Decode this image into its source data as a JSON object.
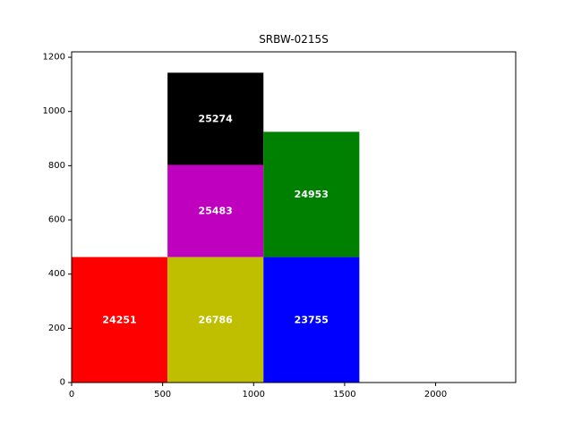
{
  "chart_data": {
    "type": "rectangles",
    "title": "SRBW-0215S",
    "xlabel": "",
    "ylabel": "",
    "xlim": [
      0,
      2440
    ],
    "ylim": [
      0,
      1220
    ],
    "xticks": [
      0,
      500,
      1000,
      1500,
      2000
    ],
    "yticks": [
      0,
      200,
      400,
      600,
      800,
      1000,
      1200
    ],
    "grid": false,
    "rectangles": [
      {
        "label": "24251",
        "x": 0,
        "y": 0,
        "width": 527,
        "height": 463,
        "color": "#ff0000"
      },
      {
        "label": "26786",
        "x": 527,
        "y": 0,
        "width": 527,
        "height": 463,
        "color": "#bfbf00"
      },
      {
        "label": "23755",
        "x": 1054,
        "y": 0,
        "width": 527,
        "height": 463,
        "color": "#0000ff"
      },
      {
        "label": "25483",
        "x": 527,
        "y": 463,
        "width": 527,
        "height": 340,
        "color": "#bf00bf"
      },
      {
        "label": "25274",
        "x": 527,
        "y": 803,
        "width": 527,
        "height": 340,
        "color": "#000000"
      },
      {
        "label": "24953",
        "x": 1054,
        "y": 463,
        "width": 527,
        "height": 462,
        "color": "#008000"
      }
    ]
  }
}
